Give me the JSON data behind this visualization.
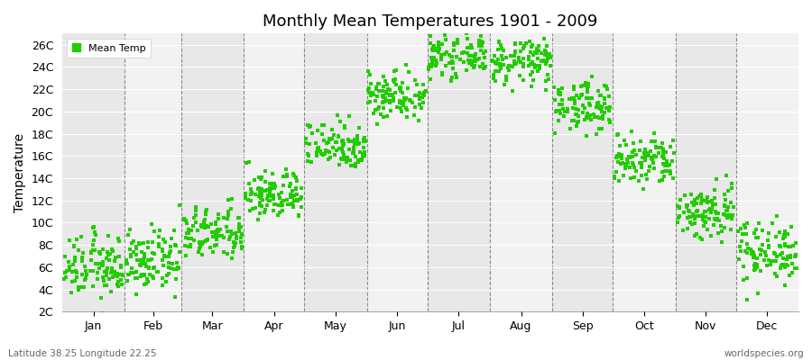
{
  "title": "Monthly Mean Temperatures 1901 - 2009",
  "ylabel": "Temperature",
  "bottom_left_label": "Latitude 38.25 Longitude 22.25",
  "bottom_right_label": "worldspecies.org",
  "legend_label": "Mean Temp",
  "dot_color": "#22cc00",
  "background_color": "#ffffff",
  "stripe_colors": [
    "#e8e8e8",
    "#f2f2f2"
  ],
  "months": [
    "Jan",
    "Feb",
    "Mar",
    "Apr",
    "May",
    "Jun",
    "Jul",
    "Aug",
    "Sep",
    "Oct",
    "Nov",
    "Dec"
  ],
  "yticks": [
    2,
    4,
    6,
    8,
    10,
    12,
    14,
    16,
    18,
    20,
    22,
    24,
    26
  ],
  "ytick_labels": [
    "2C",
    "4C",
    "6C",
    "8C",
    "10C",
    "12C",
    "14C",
    "16C",
    "18C",
    "20C",
    "22C",
    "24C",
    "26C"
  ],
  "ylim": [
    2,
    27
  ],
  "n_years": 109,
  "monthly_mean_temps": [
    6.0,
    6.5,
    9.0,
    12.5,
    17.0,
    21.5,
    25.0,
    24.5,
    20.5,
    15.5,
    11.0,
    7.5
  ],
  "monthly_std_temps": [
    1.4,
    1.3,
    1.2,
    1.1,
    1.1,
    1.1,
    0.9,
    1.0,
    1.1,
    1.2,
    1.3,
    1.4
  ],
  "days_in_months": [
    31,
    28,
    31,
    30,
    31,
    30,
    31,
    31,
    30,
    31,
    30,
    31
  ],
  "title_fontsize": 13,
  "label_fontsize": 9,
  "ylabel_fontsize": 10,
  "dot_size": 5
}
